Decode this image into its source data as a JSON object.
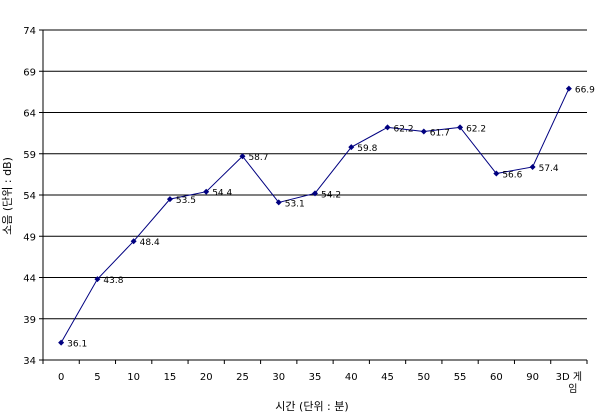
{
  "chart_data": {
    "type": "line",
    "xlabel": "시간 (단위 : 분)",
    "ylabel": "소음 (단위 : dB)",
    "ylim": [
      34,
      74
    ],
    "yticks": [
      "34",
      "39",
      "44",
      "49",
      "54",
      "59",
      "64",
      "69",
      "74"
    ],
    "grid": true,
    "legend": "none",
    "categories": [
      "0",
      "5",
      "10",
      "15",
      "20",
      "25",
      "30",
      "35",
      "40",
      "45",
      "50",
      "55",
      "60",
      "90",
      "3D 게임"
    ],
    "series": [
      {
        "values": [
          36.1,
          43.8,
          48.4,
          53.5,
          54.4,
          58.7,
          53.1,
          54.2,
          59.8,
          62.2,
          61.7,
          62.2,
          56.6,
          57.4,
          66.9
        ],
        "labels": [
          "36.1",
          "43.8",
          "48.4",
          "53.5",
          "54.4",
          "58.7",
          "53.1",
          "54.2",
          "59.8",
          "62.2",
          "61.7",
          "62.2",
          "56.6",
          "57.4",
          "66.9"
        ],
        "color": "#000080"
      }
    ]
  }
}
